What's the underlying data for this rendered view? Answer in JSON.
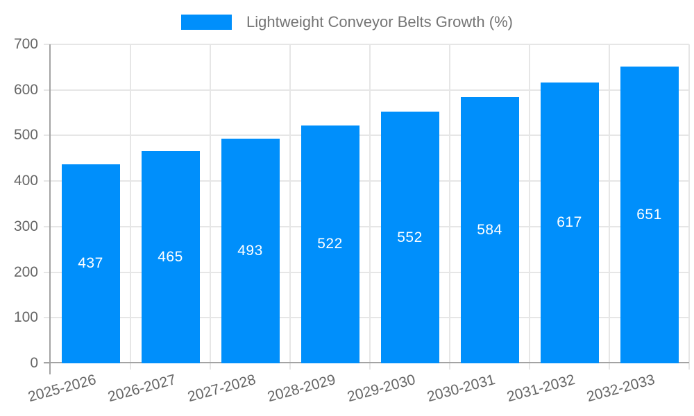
{
  "legend": {
    "label": "Lightweight Conveyor Belts Growth (%)"
  },
  "chart_data": {
    "type": "bar",
    "title": "",
    "series_name": "Lightweight Conveyor Belts Growth (%)",
    "categories": [
      "2025-2026",
      "2026-2027",
      "2027-2028",
      "2028-2029",
      "2029-2030",
      "2030-2031",
      "2031-2032",
      "2032-2033"
    ],
    "values": [
      437,
      465,
      493,
      522,
      552,
      584,
      617,
      651
    ],
    "xlabel": "",
    "ylabel": "",
    "ylim": [
      0,
      700
    ],
    "yticks": [
      0,
      100,
      200,
      300,
      400,
      500,
      600,
      700
    ],
    "grid": "both",
    "legend_position": "top",
    "data_labels": "inside-center",
    "x_label_rotation_deg": -15,
    "colors": {
      "bar": "#008FFB",
      "data_label": "#FFFFFF",
      "axis_label": "#666666",
      "legend_text": "#757575",
      "gridline": "#E6E6E6",
      "axis_line": "#A3A3A3"
    }
  }
}
